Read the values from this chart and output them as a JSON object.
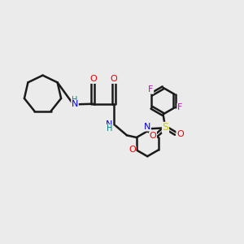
{
  "bg_color": "#ebebeb",
  "bond_color": "#1a1a1a",
  "bond_width": 1.8,
  "fig_size": [
    3.0,
    3.0
  ],
  "dpi": 100,
  "colors": {
    "N": "#0000ee",
    "O": "#ee0000",
    "S": "#cccc00",
    "F": "#cc00cc",
    "H": "#008080",
    "C": "#1a1a1a"
  }
}
